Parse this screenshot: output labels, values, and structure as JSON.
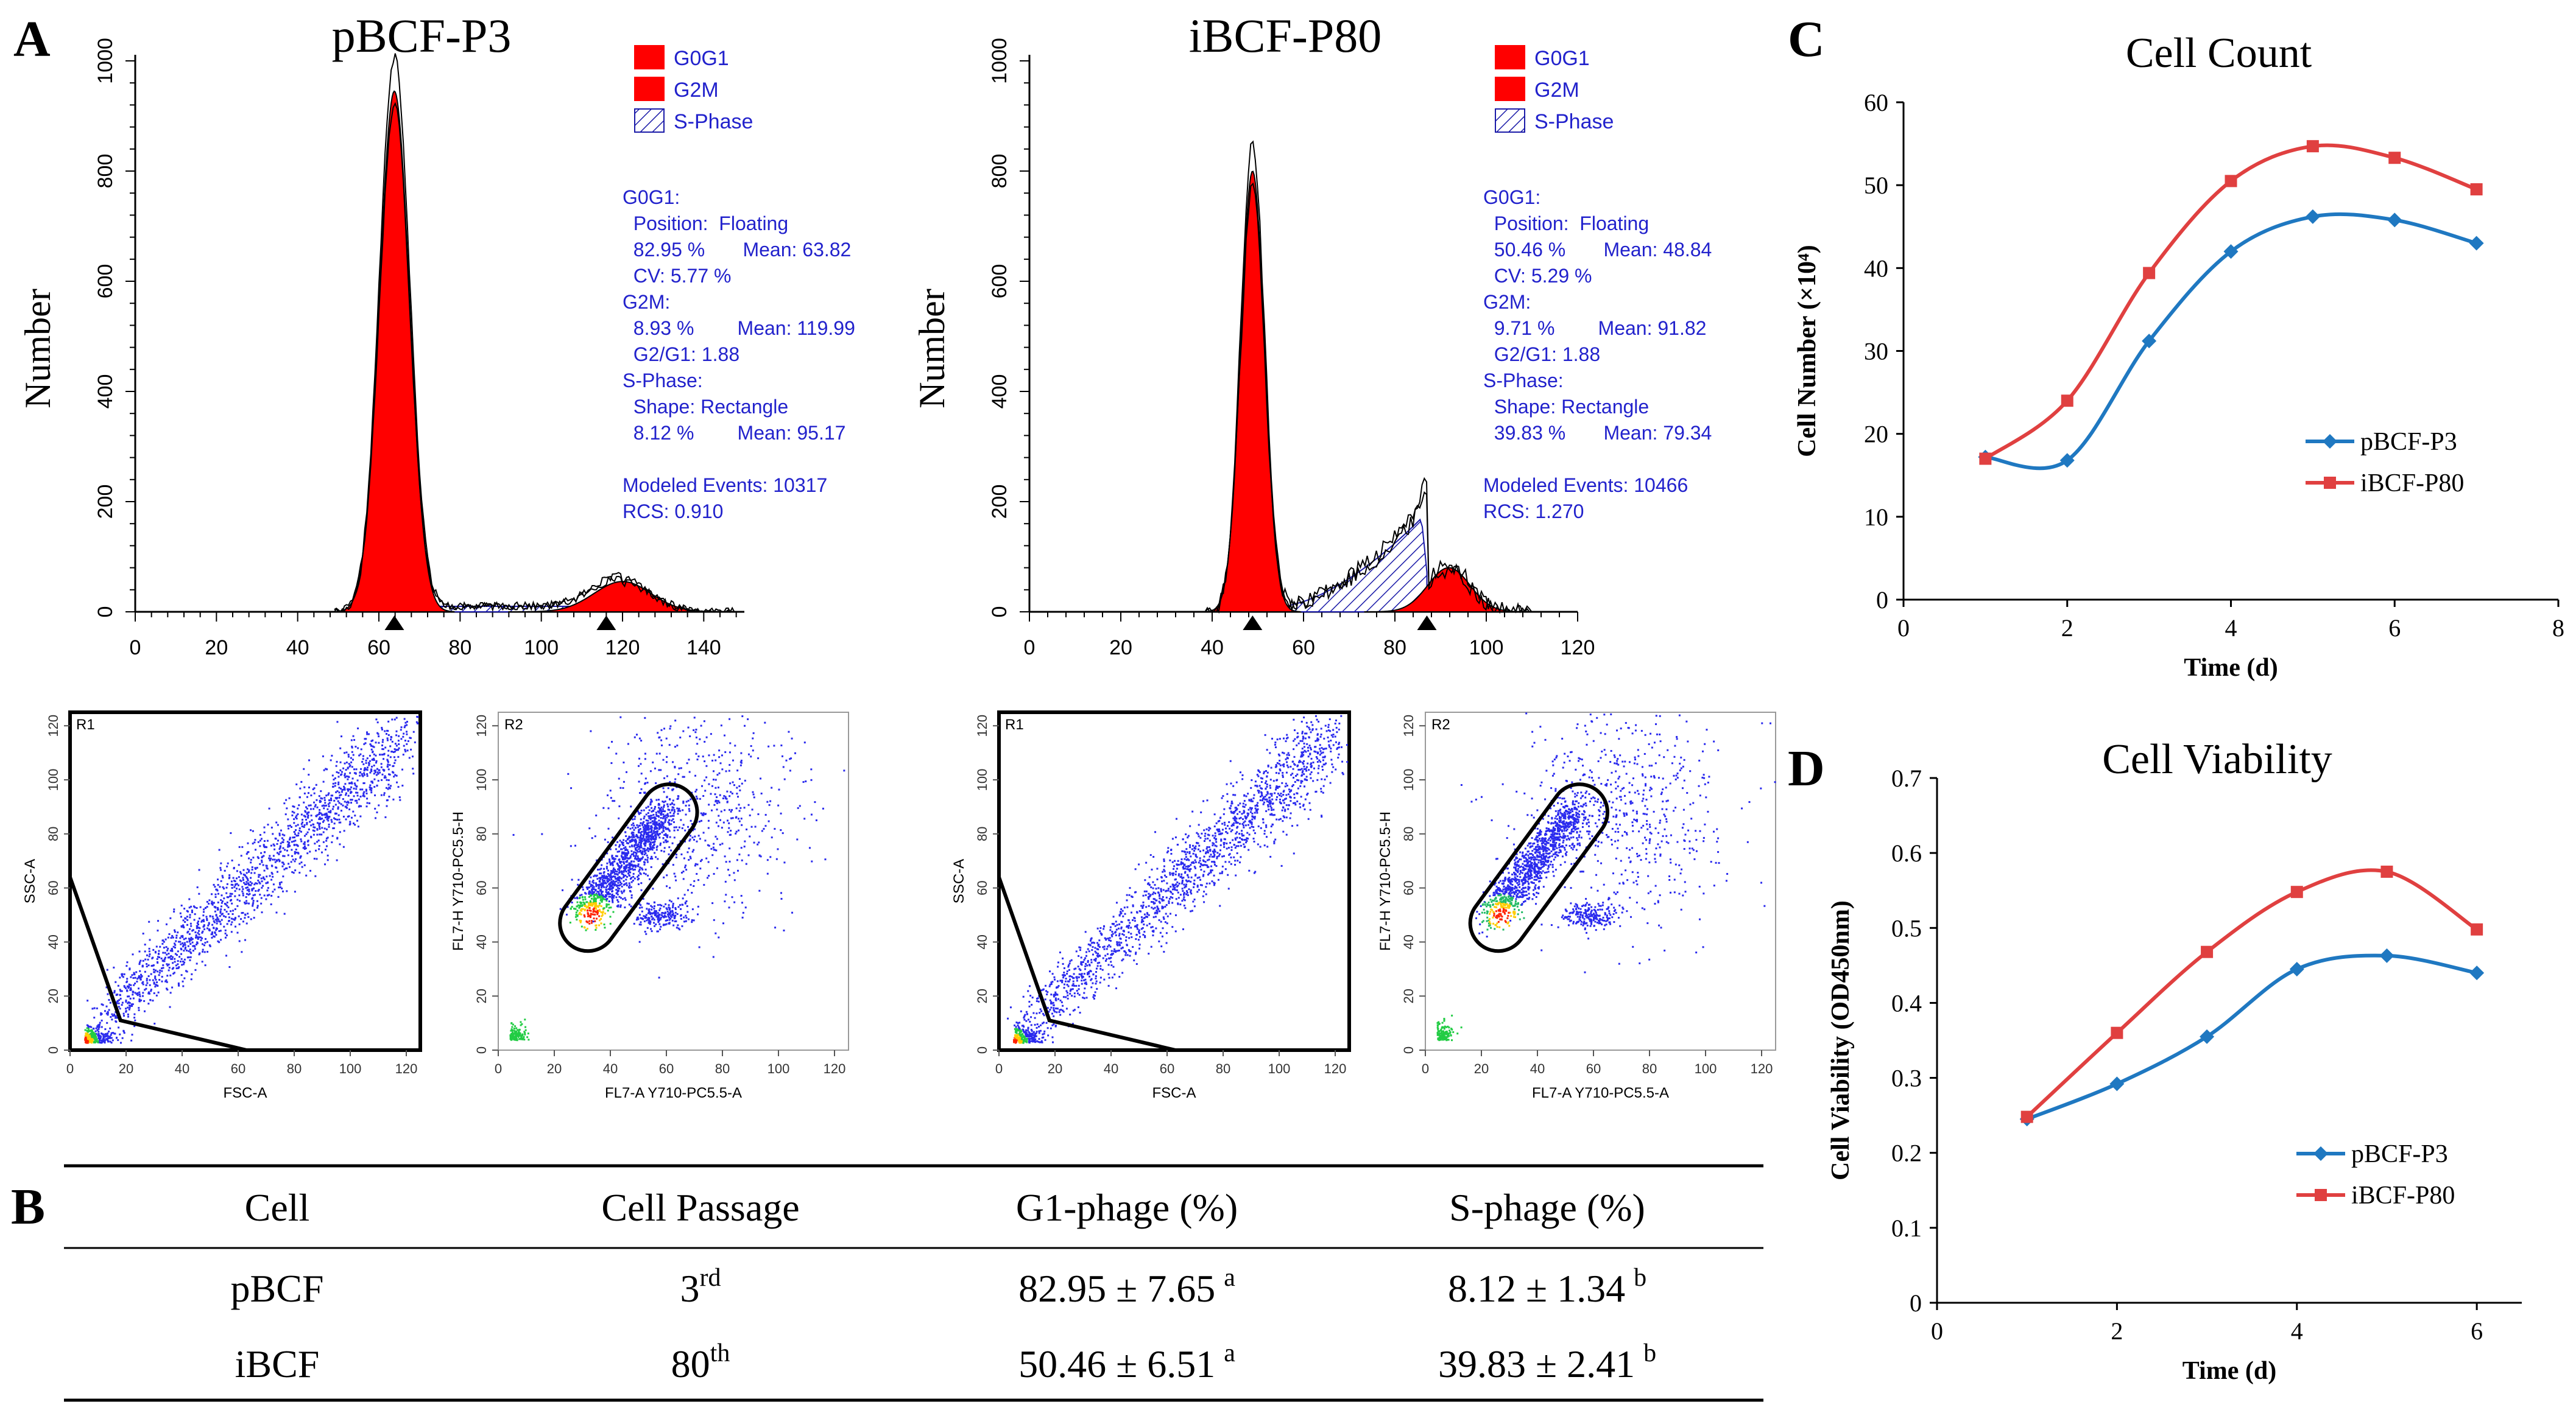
{
  "panel_letters": {
    "a": "A",
    "b": "B",
    "c": "C",
    "d": "D"
  },
  "colors": {
    "g0g1": "#ff0000",
    "sphase": "#1a1aa8",
    "info_text": "#2222cc",
    "series1": "#1f78c1",
    "series2": "#e04040",
    "dots": "#2a2aee"
  },
  "histograms": [
    {
      "title": "pBCF-P3",
      "ylabel": "Number",
      "yticks": [
        0,
        200,
        400,
        600,
        800,
        1000
      ],
      "xticks": [
        0,
        20,
        40,
        60,
        80,
        100,
        120,
        140
      ],
      "xmax": 150,
      "legend": [
        "G0G1",
        "G2M",
        "S-Phase"
      ],
      "info": [
        "G0G1:",
        "  Position:  Floating",
        "  82.95 %       Mean: 63.82",
        "  CV: 5.77 %",
        "G2M:",
        "  8.93 %        Mean: 119.99",
        "  G2/G1: 1.88",
        "S-Phase:",
        "  Shape: Rectangle",
        "  8.12 %        Mean: 95.17",
        "",
        "Modeled Events: 10317",
        "RCS: 0.910"
      ],
      "g1": {
        "mean": 63.82,
        "sd": 3.7,
        "peak": 945
      },
      "g2": {
        "mean": 119.99,
        "sd": 7.0,
        "peak": 55
      },
      "s": {
        "level": 10,
        "from": 63.82,
        "to": 119.99
      },
      "markers": [
        63.82,
        116
      ]
    },
    {
      "title": "iBCF-P80",
      "ylabel": "Number",
      "yticks": [
        0,
        200,
        400,
        600,
        800,
        1000
      ],
      "xticks": [
        0,
        20,
        40,
        60,
        80,
        100,
        120
      ],
      "xmax": 120,
      "legend": [
        "G0G1",
        "G2M",
        "S-Phase"
      ],
      "info": [
        "G0G1:",
        "  Position:  Floating",
        "  50.46 %       Mean: 48.84",
        "  CV: 5.29 %",
        "G2M:",
        "  9.71 %        Mean: 91.82",
        "  G2/G1: 1.88",
        "S-Phase:",
        "  Shape: Rectangle",
        "  39.83 %       Mean: 79.34",
        "",
        "Modeled Events: 10466",
        "RCS: 1.270"
      ],
      "g1": {
        "mean": 48.84,
        "sd": 2.6,
        "peak": 800
      },
      "g2": {
        "mean": 91.82,
        "sd": 4.6,
        "peak": 80
      },
      "s": {
        "level": 180,
        "from": 55,
        "to": 87
      },
      "markers": [
        48.84,
        87
      ]
    }
  ],
  "scatters": [
    {
      "gate": "R1",
      "xlabel": "FSC-A",
      "ylabel": "SSC-A",
      "xticks": [
        0,
        20,
        40,
        60,
        80,
        100,
        120
      ],
      "yticks": [
        0,
        20,
        40,
        60,
        80,
        100,
        120
      ],
      "kind": "fsc"
    },
    {
      "gate": "R2",
      "xlabel": "FL7-A Y710-PC5.5-A",
      "ylabel": "FL7-H Y710-PC5.5-H",
      "xticks": [
        0,
        20,
        40,
        60,
        80,
        100,
        120
      ],
      "yticks": [
        0,
        20,
        40,
        60,
        80,
        100,
        120
      ],
      "kind": "fl7a"
    },
    {
      "gate": "R1",
      "xlabel": "FSC-A",
      "ylabel": "SSC-A",
      "xticks": [
        0,
        20,
        40,
        60,
        80,
        100,
        120
      ],
      "yticks": [
        0,
        20,
        40,
        60,
        80,
        100,
        120
      ],
      "kind": "fsc"
    },
    {
      "gate": "R2",
      "xlabel": "FL7-A Y710-PC5.5-A",
      "ylabel": "FL7-H Y710-PC5.5-H",
      "xticks": [
        0,
        20,
        40,
        60,
        80,
        100,
        120
      ],
      "yticks": [
        0,
        20,
        40,
        60,
        80,
        100,
        120
      ],
      "kind": "fl7b"
    }
  ],
  "table": {
    "headers": [
      "Cell",
      "Cell Passage",
      "G1-phage (%)",
      "S-phage (%)"
    ],
    "rows": [
      {
        "cell": "pBCF",
        "passage": "3",
        "passage_sup": "rd",
        "g1": "82.95 ± 7.65",
        "g1_sup": "a",
        "s": "8.12 ± 1.34",
        "s_sup": "b"
      },
      {
        "cell": "iBCF",
        "passage": "80",
        "passage_sup": "th",
        "g1": "50.46 ± 6.51",
        "g1_sup": "a",
        "s": "39.83 ± 2.41",
        "s_sup": "b"
      }
    ]
  },
  "chart_data": [
    {
      "type": "line",
      "title": "Cell Count",
      "xlabel": "Time (d)",
      "ylabel": "Cell Number (×10⁴)",
      "xlim": [
        0,
        8
      ],
      "ylim": [
        0,
        60
      ],
      "xticks": [
        0,
        2,
        4,
        6,
        8
      ],
      "yticks": [
        0,
        10,
        20,
        30,
        40,
        50,
        60
      ],
      "legend": "right",
      "series": [
        {
          "name": "pBCF-P3",
          "x": [
            1,
            2,
            3,
            4,
            5,
            6,
            7
          ],
          "values": [
            17.2,
            16.8,
            31.2,
            42.0,
            46.2,
            45.8,
            43.0
          ]
        },
        {
          "name": "iBCF-P80",
          "x": [
            1,
            2,
            3,
            4,
            5,
            6,
            7
          ],
          "values": [
            17.0,
            24.0,
            39.4,
            50.5,
            54.7,
            53.3,
            49.5
          ]
        }
      ]
    },
    {
      "type": "line",
      "title": "Cell Viability",
      "xlabel": "Time (d)",
      "ylabel": "Cell Viability (OD450nm)",
      "xlim": [
        0,
        6.5
      ],
      "ylim": [
        0,
        0.7
      ],
      "xticks": [
        0,
        2,
        4,
        6
      ],
      "yticks": [
        0,
        0.1,
        0.2,
        0.3,
        0.4,
        0.5,
        0.6,
        0.7
      ],
      "legend": "right",
      "series": [
        {
          "name": "pBCF-P3",
          "x": [
            1,
            2,
            3,
            4,
            5,
            6
          ],
          "values": [
            0.245,
            0.292,
            0.355,
            0.445,
            0.463,
            0.44
          ]
        },
        {
          "name": "iBCF-P80",
          "x": [
            1,
            2,
            3,
            4,
            5,
            6
          ],
          "values": [
            0.248,
            0.36,
            0.468,
            0.548,
            0.575,
            0.498
          ]
        }
      ]
    }
  ]
}
